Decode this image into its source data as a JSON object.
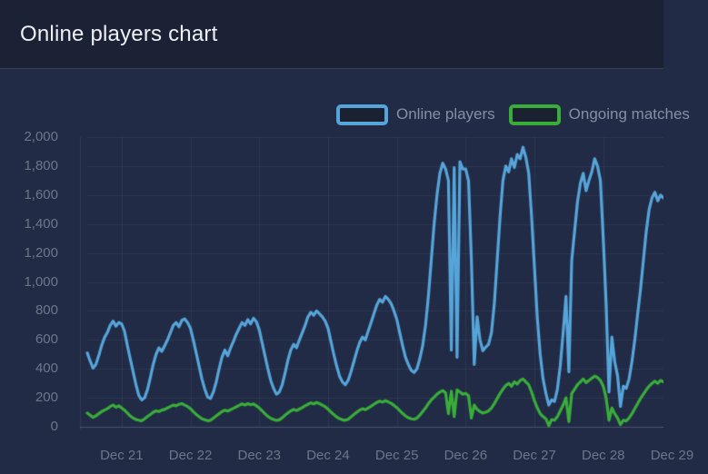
{
  "header": {
    "title": "Online players chart"
  },
  "colors": {
    "header_bg": "#1b2236",
    "chart_bg": "#212b46",
    "divider": "#394159",
    "grid": "rgba(255,255,255,0.055)",
    "baseline": "#4a5370",
    "axis_line": "rgba(255,255,255,0.08)",
    "tick_text": "#6d7689",
    "legend_text": "#868ea2",
    "online_players_blue": "#56a5da",
    "ongoing_matches_green": "#3aad39"
  },
  "chart_data": {
    "type": "line",
    "title": "Online players chart",
    "grid": true,
    "legend_position": "top-right",
    "x_axis": {
      "start": "Dec 20 12:00",
      "interval_hours": 1,
      "ticks": [
        {
          "label": "Dec 21",
          "index": 12
        },
        {
          "label": "Dec 22",
          "index": 36
        },
        {
          "label": "Dec 23",
          "index": 60
        },
        {
          "label": "Dec 24",
          "index": 84
        },
        {
          "label": "Dec 25",
          "index": 108
        },
        {
          "label": "Dec 26",
          "index": 132
        },
        {
          "label": "Dec 27",
          "index": 156
        },
        {
          "label": "Dec 28",
          "index": 180
        },
        {
          "label": "Dec 29",
          "index": 204
        }
      ]
    },
    "y_axis": {
      "min": 0,
      "max": 2000,
      "tick_step": 200,
      "tick_labels": [
        "0",
        "200",
        "400",
        "600",
        "800",
        "1,000",
        "1,200",
        "1,400",
        "1,600",
        "1,800",
        "2,000"
      ]
    },
    "series": [
      {
        "name": "Online players",
        "color": "#56a5da",
        "values": [
          510,
          455,
          405,
          430,
          490,
          560,
          615,
          650,
          700,
          730,
          695,
          720,
          710,
          660,
          560,
          470,
          380,
          290,
          215,
          185,
          200,
          255,
          340,
          430,
          500,
          545,
          520,
          560,
          600,
          650,
          700,
          720,
          690,
          735,
          745,
          720,
          680,
          600,
          510,
          420,
          330,
          260,
          205,
          195,
          240,
          310,
          400,
          480,
          530,
          490,
          545,
          590,
          640,
          680,
          720,
          700,
          740,
          710,
          750,
          725,
          670,
          580,
          490,
          400,
          320,
          265,
          225,
          240,
          290,
          370,
          460,
          530,
          570,
          545,
          600,
          650,
          700,
          760,
          790,
          770,
          800,
          780,
          760,
          730,
          680,
          590,
          500,
          420,
          350,
          310,
          290,
          320,
          380,
          450,
          520,
          580,
          620,
          600,
          660,
          720,
          780,
          840,
          880,
          860,
          900,
          880,
          850,
          800,
          740,
          650,
          560,
          480,
          430,
          390,
          375,
          400,
          470,
          560,
          700,
          900,
          1150,
          1400,
          1600,
          1750,
          1820,
          1780,
          1700,
          530,
          1790,
          480,
          1830,
          1780,
          1780,
          1700,
          1150,
          430,
          760,
          600,
          525,
          550,
          570,
          650,
          850,
          1150,
          1450,
          1700,
          1800,
          1760,
          1850,
          1790,
          1880,
          1850,
          1930,
          1860,
          1750,
          1450,
          1100,
          750,
          500,
          330,
          230,
          150,
          185,
          175,
          260,
          420,
          650,
          900,
          380,
          1150,
          1350,
          1550,
          1680,
          1750,
          1630,
          1700,
          1760,
          1850,
          1800,
          1700,
          1300,
          850,
          240,
          620,
          450,
          350,
          140,
          280,
          265,
          330,
          450,
          600,
          780,
          950,
          1150,
          1350,
          1500,
          1580,
          1620,
          1560,
          1600,
          1580
        ]
      },
      {
        "name": "Ongoing matches",
        "color": "#3aad39",
        "values": [
          95,
          80,
          65,
          75,
          90,
          105,
          115,
          125,
          140,
          150,
          135,
          145,
          130,
          115,
          95,
          75,
          60,
          50,
          45,
          42,
          55,
          70,
          85,
          100,
          110,
          105,
          115,
          120,
          130,
          140,
          150,
          145,
          155,
          160,
          150,
          140,
          125,
          105,
          85,
          70,
          55,
          48,
          42,
          45,
          60,
          75,
          90,
          105,
          115,
          108,
          118,
          128,
          138,
          148,
          158,
          150,
          160,
          152,
          158,
          145,
          130,
          110,
          90,
          72,
          58,
          50,
          44,
          48,
          62,
          80,
          95,
          110,
          120,
          112,
          122,
          132,
          145,
          155,
          165,
          158,
          168,
          160,
          150,
          138,
          122,
          102,
          84,
          68,
          56,
          48,
          45,
          52,
          68,
          85,
          100,
          115,
          125,
          118,
          130,
          142,
          155,
          168,
          178,
          170,
          180,
          172,
          162,
          148,
          132,
          112,
          92,
          75,
          62,
          55,
          52,
          60,
          80,
          105,
          130,
          160,
          185,
          205,
          225,
          240,
          250,
          235,
          90,
          245,
          70,
          255,
          240,
          225,
          230,
          215,
          60,
          150,
          120,
          105,
          95,
          100,
          110,
          130,
          160,
          195,
          230,
          260,
          285,
          300,
          280,
          310,
          295,
          320,
          330,
          310,
          290,
          240,
          180,
          130,
          90,
          70,
          55,
          8,
          50,
          45,
          70,
          110,
          150,
          200,
          35,
          230,
          260,
          290,
          310,
          330,
          305,
          320,
          335,
          350,
          340,
          320,
          280,
          200,
          45,
          130,
          90,
          60,
          15,
          45,
          40,
          60,
          90,
          125,
          160,
          195,
          225,
          255,
          280,
          300,
          315,
          300,
          320,
          310
        ]
      }
    ]
  }
}
